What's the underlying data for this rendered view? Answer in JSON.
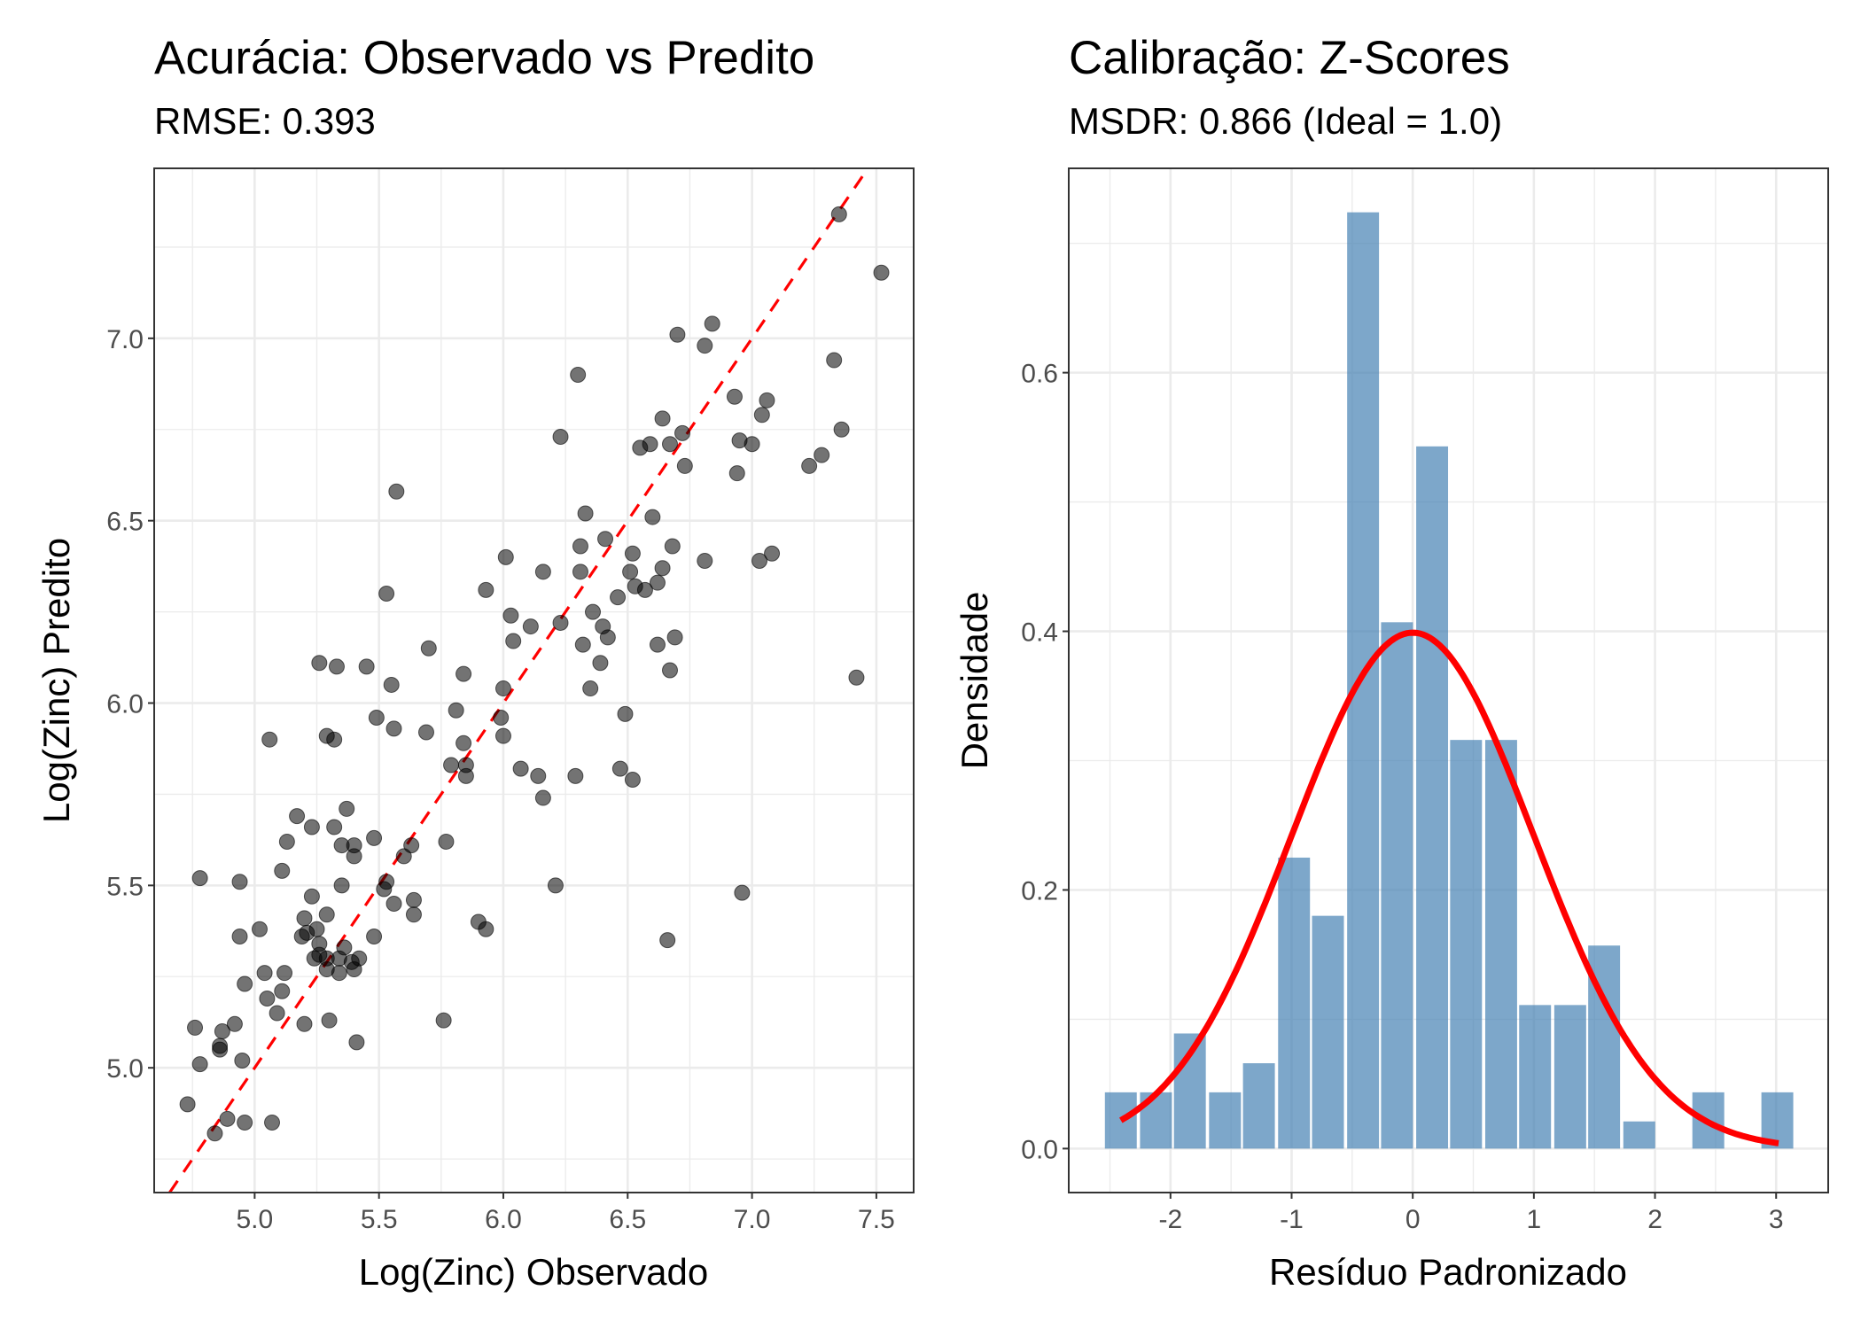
{
  "chart_data": [
    {
      "type": "scatter",
      "title": "Acurácia: Observado vs Predito",
      "subtitle": "RMSE: 0.393",
      "xlabel": "Log(Zinc) Observado",
      "ylabel": "Log(Zinc) Predito",
      "xlim": [
        4.596,
        7.65
      ],
      "ylim": [
        4.658,
        7.466
      ],
      "xticks": [
        5.0,
        5.5,
        6.0,
        6.5,
        7.0,
        7.5
      ],
      "xtick_labels": [
        "5.0",
        "5.5",
        "6.0",
        "6.5",
        "7.0",
        "7.5"
      ],
      "yticks": [
        5.0,
        5.5,
        6.0,
        6.5,
        7.0
      ],
      "ytick_labels": [
        "5.0",
        "5.5",
        "6.0",
        "6.5",
        "7.0"
      ],
      "grid": true,
      "point_color": "#000000",
      "point_alpha": 0.55,
      "reference_line": {
        "type": "identity",
        "slope": 1,
        "intercept": 0,
        "color": "#ff0000",
        "style": "dashed"
      },
      "points": [
        [
          7.52,
          7.18
        ],
        [
          7.35,
          7.34
        ],
        [
          6.7,
          7.01
        ],
        [
          6.84,
          7.04
        ],
        [
          6.81,
          6.98
        ],
        [
          7.33,
          6.94
        ],
        [
          6.3,
          6.9
        ],
        [
          6.93,
          6.84
        ],
        [
          7.06,
          6.83
        ],
        [
          7.04,
          6.79
        ],
        [
          6.64,
          6.78
        ],
        [
          6.72,
          6.74
        ],
        [
          7.36,
          6.75
        ],
        [
          6.95,
          6.72
        ],
        [
          7.0,
          6.71
        ],
        [
          6.59,
          6.71
        ],
        [
          6.55,
          6.7
        ],
        [
          6.67,
          6.71
        ],
        [
          6.73,
          6.65
        ],
        [
          7.23,
          6.65
        ],
        [
          7.28,
          6.68
        ],
        [
          6.94,
          6.63
        ],
        [
          6.23,
          6.73
        ],
        [
          5.57,
          6.58
        ],
        [
          6.33,
          6.52
        ],
        [
          6.6,
          6.51
        ],
        [
          6.41,
          6.45
        ],
        [
          6.31,
          6.43
        ],
        [
          6.68,
          6.43
        ],
        [
          6.52,
          6.41
        ],
        [
          6.01,
          6.4
        ],
        [
          7.08,
          6.41
        ],
        [
          7.03,
          6.39
        ],
        [
          6.81,
          6.39
        ],
        [
          6.16,
          6.36
        ],
        [
          6.31,
          6.36
        ],
        [
          6.51,
          6.36
        ],
        [
          6.64,
          6.37
        ],
        [
          6.53,
          6.32
        ],
        [
          6.62,
          6.33
        ],
        [
          6.57,
          6.31
        ],
        [
          6.46,
          6.29
        ],
        [
          5.53,
          6.3
        ],
        [
          5.93,
          6.31
        ],
        [
          6.03,
          6.24
        ],
        [
          6.36,
          6.25
        ],
        [
          6.11,
          6.21
        ],
        [
          6.23,
          6.22
        ],
        [
          6.4,
          6.21
        ],
        [
          6.42,
          6.18
        ],
        [
          6.69,
          6.18
        ],
        [
          6.04,
          6.17
        ],
        [
          6.32,
          6.16
        ],
        [
          6.62,
          6.16
        ],
        [
          5.7,
          6.15
        ],
        [
          5.26,
          6.11
        ],
        [
          5.33,
          6.1
        ],
        [
          5.45,
          6.1
        ],
        [
          6.39,
          6.11
        ],
        [
          5.84,
          6.08
        ],
        [
          6.67,
          6.09
        ],
        [
          7.42,
          6.07
        ],
        [
          5.55,
          6.05
        ],
        [
          6.0,
          6.04
        ],
        [
          6.35,
          6.04
        ],
        [
          5.81,
          5.98
        ],
        [
          5.49,
          5.96
        ],
        [
          5.99,
          5.96
        ],
        [
          6.49,
          5.97
        ],
        [
          5.56,
          5.93
        ],
        [
          5.69,
          5.92
        ],
        [
          5.29,
          5.91
        ],
        [
          5.32,
          5.9
        ],
        [
          5.06,
          5.9
        ],
        [
          6.0,
          5.91
        ],
        [
          5.84,
          5.89
        ],
        [
          5.79,
          5.83
        ],
        [
          5.85,
          5.83
        ],
        [
          5.85,
          5.8
        ],
        [
          6.07,
          5.82
        ],
        [
          6.14,
          5.8
        ],
        [
          6.29,
          5.8
        ],
        [
          6.47,
          5.82
        ],
        [
          6.52,
          5.79
        ],
        [
          6.16,
          5.74
        ],
        [
          5.17,
          5.69
        ],
        [
          5.37,
          5.71
        ],
        [
          5.23,
          5.66
        ],
        [
          5.32,
          5.66
        ],
        [
          5.13,
          5.62
        ],
        [
          5.35,
          5.61
        ],
        [
          5.4,
          5.61
        ],
        [
          5.48,
          5.63
        ],
        [
          5.63,
          5.61
        ],
        [
          5.77,
          5.62
        ],
        [
          5.4,
          5.58
        ],
        [
          5.6,
          5.58
        ],
        [
          5.11,
          5.54
        ],
        [
          4.78,
          5.52
        ],
        [
          4.94,
          5.51
        ],
        [
          5.35,
          5.5
        ],
        [
          5.53,
          5.51
        ],
        [
          5.52,
          5.49
        ],
        [
          6.21,
          5.5
        ],
        [
          6.96,
          5.48
        ],
        [
          5.23,
          5.47
        ],
        [
          5.56,
          5.45
        ],
        [
          5.64,
          5.46
        ],
        [
          5.2,
          5.41
        ],
        [
          5.29,
          5.42
        ],
        [
          5.64,
          5.42
        ],
        [
          5.25,
          5.38
        ],
        [
          5.21,
          5.37
        ],
        [
          5.19,
          5.36
        ],
        [
          4.94,
          5.36
        ],
        [
          5.02,
          5.38
        ],
        [
          5.48,
          5.36
        ],
        [
          5.9,
          5.4
        ],
        [
          5.93,
          5.38
        ],
        [
          6.66,
          5.35
        ],
        [
          5.26,
          5.34
        ],
        [
          5.36,
          5.33
        ],
        [
          5.24,
          5.3
        ],
        [
          5.26,
          5.31
        ],
        [
          5.29,
          5.3
        ],
        [
          5.34,
          5.3
        ],
        [
          5.39,
          5.29
        ],
        [
          5.42,
          5.3
        ],
        [
          5.29,
          5.27
        ],
        [
          5.34,
          5.26
        ],
        [
          5.4,
          5.27
        ],
        [
          5.04,
          5.26
        ],
        [
          5.12,
          5.26
        ],
        [
          4.96,
          5.23
        ],
        [
          5.05,
          5.19
        ],
        [
          5.11,
          5.21
        ],
        [
          5.09,
          5.15
        ],
        [
          5.3,
          5.13
        ],
        [
          5.76,
          5.13
        ],
        [
          5.2,
          5.12
        ],
        [
          4.92,
          5.12
        ],
        [
          4.76,
          5.11
        ],
        [
          4.87,
          5.1
        ],
        [
          5.41,
          5.07
        ],
        [
          4.86,
          5.06
        ],
        [
          4.86,
          5.05
        ],
        [
          4.78,
          5.01
        ],
        [
          4.95,
          5.02
        ],
        [
          4.73,
          4.9
        ],
        [
          4.89,
          4.86
        ],
        [
          4.96,
          4.85
        ],
        [
          5.07,
          4.85
        ],
        [
          4.84,
          4.82
        ]
      ]
    },
    {
      "type": "bar",
      "subtype": "histogram",
      "title": "Calibração: Z-Scores",
      "subtitle": "MSDR: 0.866 (Ideal = 1.0)",
      "xlabel": "Resíduo Padronizado",
      "ylabel": "Densidade",
      "xlim": [
        -2.84,
        3.43
      ],
      "ylim": [
        -0.034,
        0.758
      ],
      "xticks": [
        -2,
        -1,
        0,
        1,
        2,
        3
      ],
      "xtick_labels": [
        "-2",
        "-1",
        "0",
        "1",
        "2",
        "3"
      ],
      "yticks": [
        0.0,
        0.2,
        0.4,
        0.6
      ],
      "ytick_labels": [
        "0.0",
        "0.2",
        "0.4",
        "0.6"
      ],
      "grid": true,
      "bar_color": "#4682b4",
      "bar_alpha": 0.7,
      "binwidth": 0.285,
      "bin_centers": [
        -2.41,
        -2.12,
        -1.84,
        -1.55,
        -1.27,
        -0.98,
        -0.7,
        -0.41,
        -0.13,
        0.16,
        0.44,
        0.73,
        1.01,
        1.3,
        1.58,
        1.87,
        2.15,
        2.44,
        2.72,
        3.01
      ],
      "values": [
        0.0435,
        0.0435,
        0.089,
        0.0435,
        0.066,
        0.225,
        0.18,
        0.724,
        0.407,
        0.543,
        0.316,
        0.316,
        0.111,
        0.111,
        0.157,
        0.021,
        0,
        0.0435,
        0,
        0.0435
      ],
      "curve": {
        "type": "normal_density",
        "mean": 0,
        "sd": 1,
        "x_range": [
          -2.41,
          3.02
        ],
        "color": "#ff0000"
      }
    }
  ]
}
